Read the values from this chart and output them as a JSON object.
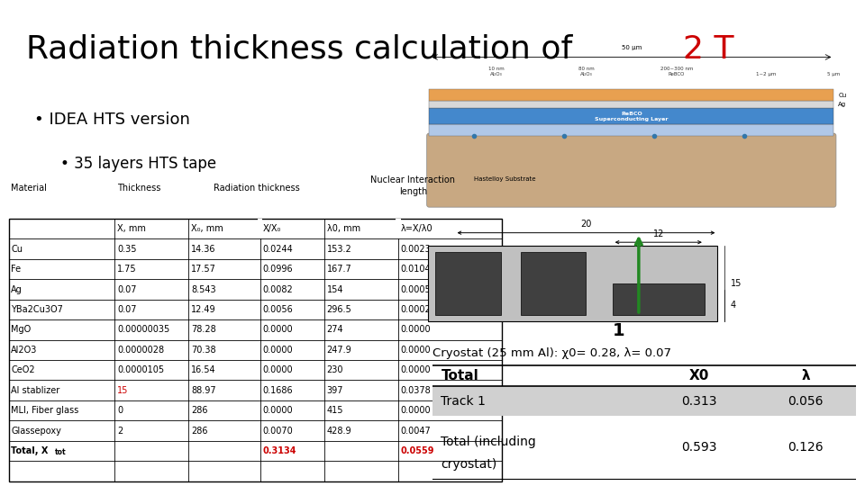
{
  "title_prefix": "Radiation thickness calculation of ",
  "title_highlight": "2 T",
  "title_highlight_color": "#cc0000",
  "title_fontsize": 26,
  "bullet1": "• IDEA HTS version",
  "bullet2": "• 35 layers HTS tape",
  "table_data": [
    [
      "Cu",
      "0.35",
      "14.36",
      "0.0244",
      "153.2",
      "0.0023"
    ],
    [
      "Fe",
      "1.75",
      "17.57",
      "0.0996",
      "167.7",
      "0.0104"
    ],
    [
      "Ag",
      "0.07",
      "8.543",
      "0.0082",
      "154",
      "0.0005"
    ],
    [
      "YBa2Cu3O7",
      "0.07",
      "12.49",
      "0.0056",
      "296.5",
      "0.0002"
    ],
    [
      "MgO",
      "0.00000035",
      "78.28",
      "0.0000",
      "274",
      "0.0000"
    ],
    [
      "Al2O3",
      "0.0000028",
      "70.38",
      "0.0000",
      "247.9",
      "0.0000"
    ],
    [
      "CeO2",
      "0.0000105",
      "16.54",
      "0.0000",
      "230",
      "0.0000"
    ],
    [
      "Al stablizer",
      "15",
      "88.97",
      "0.1686",
      "397",
      "0.0378"
    ],
    [
      "MLI, Fiber glass",
      "0",
      "286",
      "0.0000",
      "415",
      "0.0000"
    ],
    [
      "Glassepoxy",
      "2",
      "286",
      "0.0070",
      "428.9",
      "0.0047"
    ],
    [
      "Total, X_tot",
      "",
      "",
      "0.3134",
      "",
      "0.0559"
    ]
  ],
  "al_stablizer_thickness_color": "#cc0000",
  "total_color": "#cc0000",
  "summary_title": "Total",
  "summary_col1": "X0",
  "summary_col2": "λ",
  "summary_rows": [
    [
      "Track 1",
      "0.313",
      "0.056"
    ],
    [
      "Total (including\ncryostat)",
      "0.593",
      "0.126"
    ]
  ],
  "cryostat_text": "Cryostat (25 mm Al): χ0= 0.28, λ= 0.07",
  "bg_color": "#ffffff"
}
